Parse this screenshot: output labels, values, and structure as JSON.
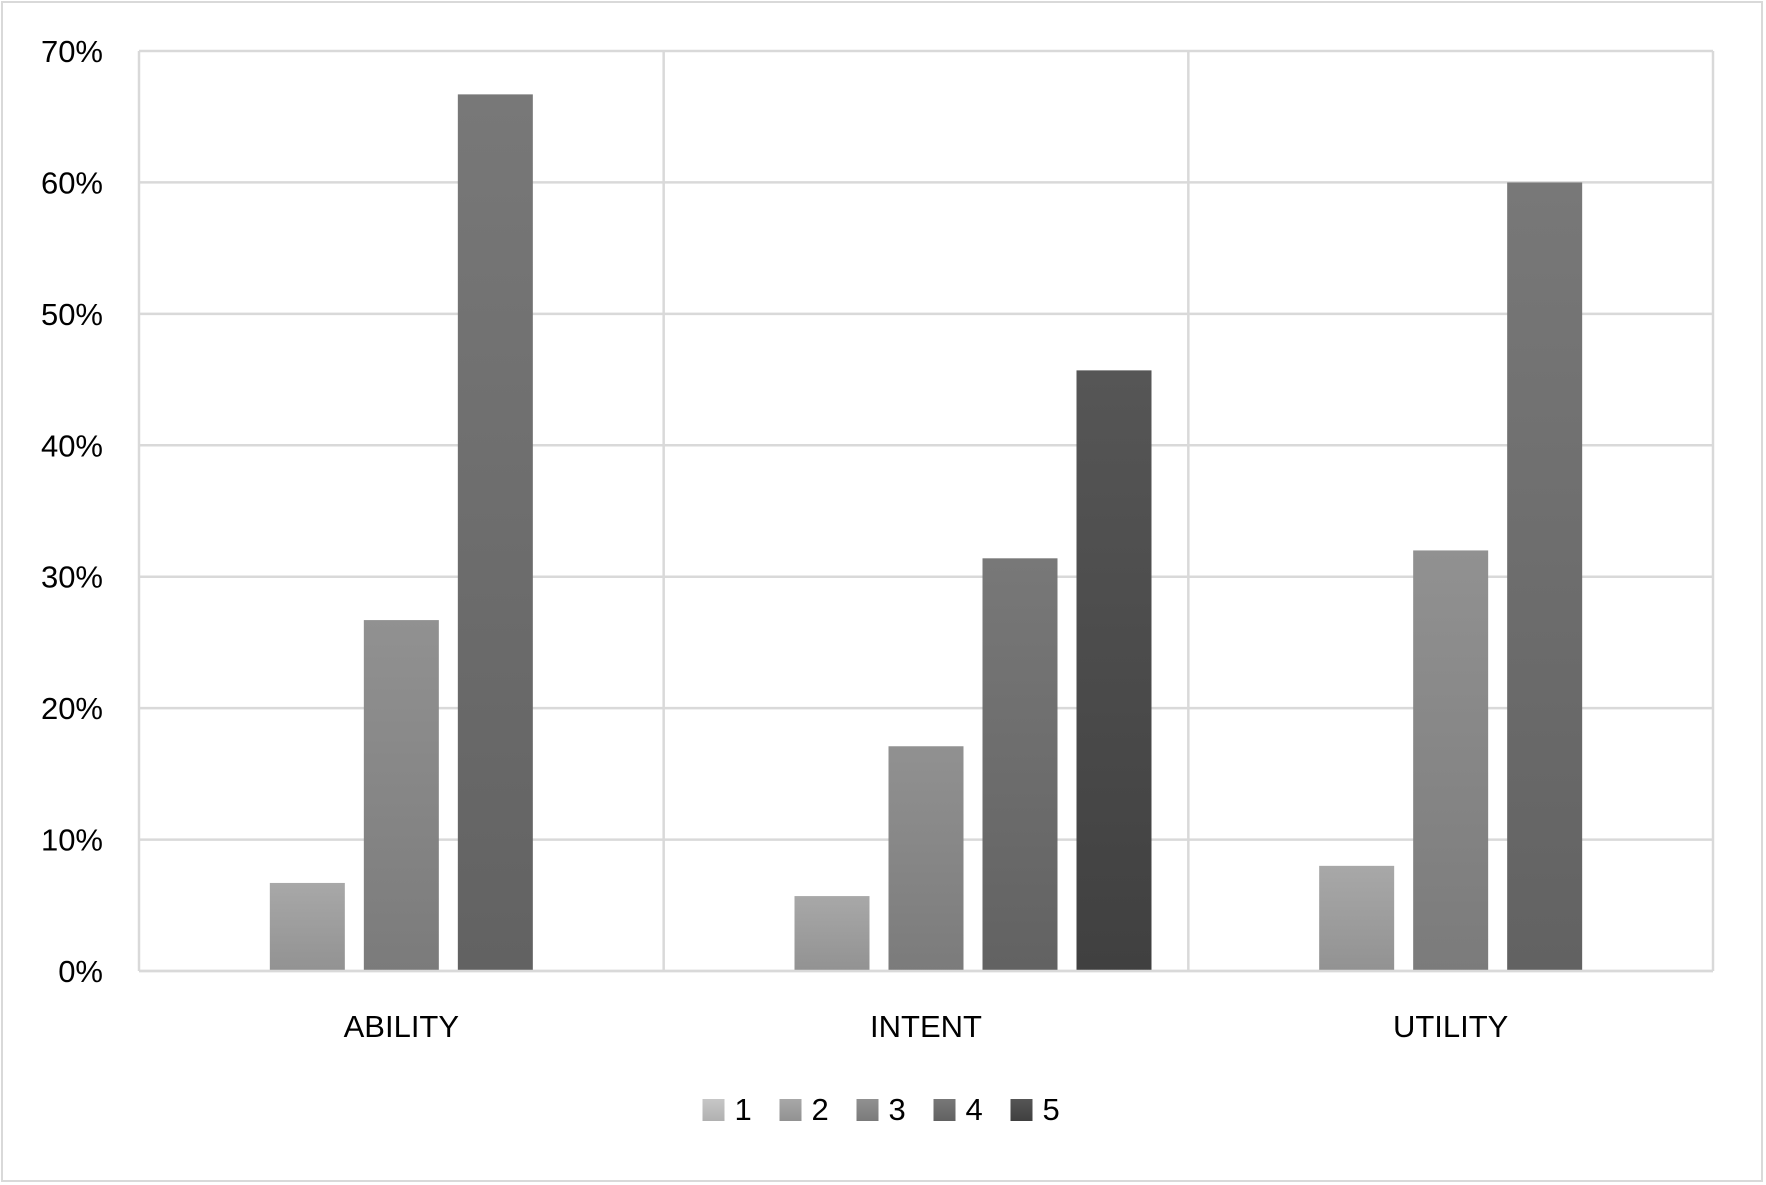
{
  "chart_data": {
    "type": "bar",
    "title": "",
    "xlabel": "",
    "ylabel": "",
    "categories": [
      "ABILITY",
      "INTENT",
      "UTILITY"
    ],
    "ylim": [
      0,
      70
    ],
    "yticks": [
      "0%",
      "10%",
      "20%",
      "30%",
      "40%",
      "50%",
      "60%",
      "70%"
    ],
    "y_unit": "%",
    "grid": true,
    "legend_position": "bottom",
    "series": [
      {
        "name": "1",
        "values": [
          0,
          0,
          0
        ],
        "color": "#cfcfcf"
      },
      {
        "name": "2",
        "values": [
          6.7,
          5.7,
          8.0
        ],
        "color": "#b0b0b0"
      },
      {
        "name": "3",
        "values": [
          26.7,
          17.1,
          32.0
        ],
        "color": "#999999"
      },
      {
        "name": "4",
        "values": [
          66.7,
          31.4,
          60.0
        ],
        "color": "#808080"
      },
      {
        "name": "5",
        "values": [
          0,
          45.7,
          0
        ],
        "color": "#5e5e5e"
      }
    ]
  }
}
